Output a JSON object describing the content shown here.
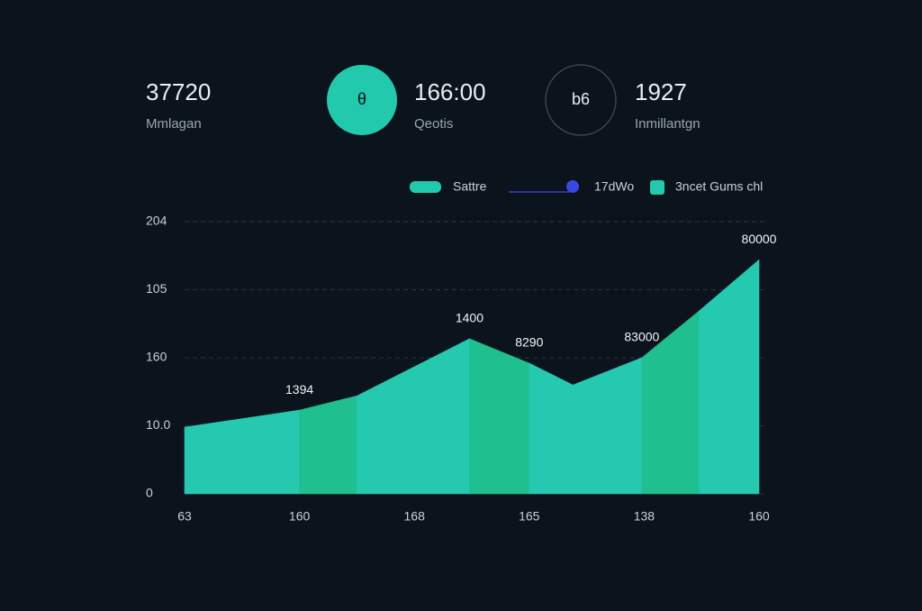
{
  "stats": [
    {
      "value": "37720",
      "label": "Mmlagan"
    },
    {
      "icon": "θ",
      "value": "166:00",
      "label": "Qeotis"
    },
    {
      "icon": "b6",
      "value": "1927",
      "label": "Inmillantgn"
    }
  ],
  "chart_data": {
    "type": "area",
    "legend": [
      "Sattre",
      "17dWo",
      "3ncet Gums chl"
    ],
    "x": [
      0,
      1,
      1.5,
      2.48,
      3.0,
      3.38,
      3.98,
      4.48,
      5
    ],
    "values": [
      0.98,
      1.23,
      1.44,
      2.28,
      1.92,
      1.6,
      2.0,
      2.69,
      3.44
    ],
    "color": "#25c9b0",
    "highlight_color": "#1fbf8f",
    "highlight_segments": [
      1,
      3,
      6
    ],
    "annotations": [
      {
        "label": "1394",
        "at": 1
      },
      {
        "label": "1400",
        "at": 3
      },
      {
        "label": "8290",
        "at": 4
      },
      {
        "label": "83000",
        "at": 6
      },
      {
        "label": "80000",
        "at": 8
      }
    ],
    "xlim": [
      0,
      5
    ],
    "xticks": [
      {
        "value": 0,
        "label": "63"
      },
      {
        "value": 1,
        "label": "160"
      },
      {
        "value": 2,
        "label": "168"
      },
      {
        "value": 3,
        "label": "165"
      },
      {
        "value": 4,
        "label": "138"
      },
      {
        "value": 5,
        "label": "160"
      }
    ],
    "ylim": [
      0,
      4
    ],
    "yticks": [
      0,
      {
        "value": 1,
        "label": "10.0"
      },
      {
        "value": 2,
        "label": "160"
      },
      {
        "value": 3,
        "label": "105"
      },
      {
        "value": 4,
        "label": "204"
      }
    ],
    "grid": true
  }
}
